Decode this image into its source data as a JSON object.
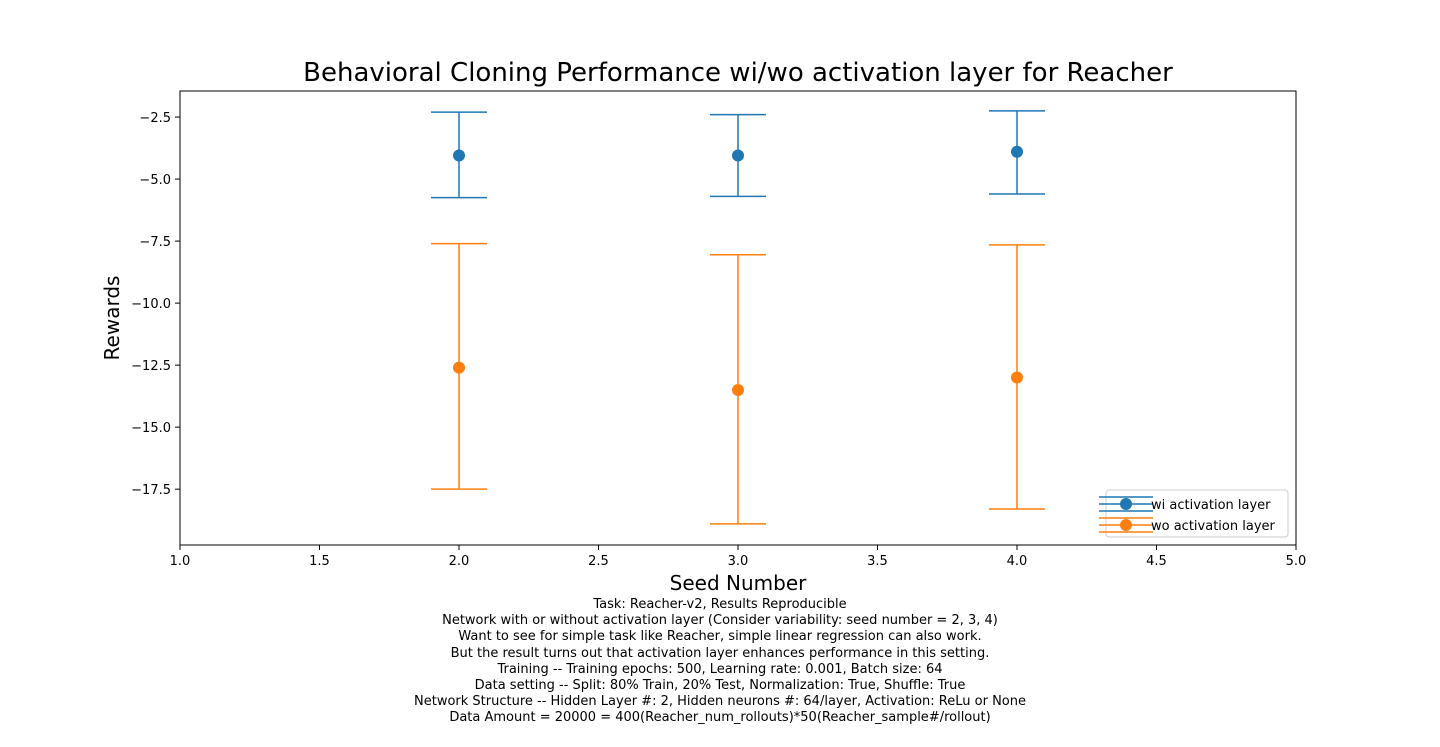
{
  "chart_data": {
    "type": "scatter",
    "title": "Behavioral Cloning Performance wi/wo activation layer for Reacher",
    "xlabel": "Seed Number",
    "ylabel": "Rewards",
    "xlim": [
      1.0,
      5.0
    ],
    "ylim": [
      -19.75,
      -1.45
    ],
    "x_ticks": [
      1.0,
      1.5,
      2.0,
      2.5,
      3.0,
      3.5,
      4.0,
      4.5,
      5.0
    ],
    "x_tick_labels": [
      "1.0",
      "1.5",
      "2.0",
      "2.5",
      "3.0",
      "3.5",
      "4.0",
      "4.5",
      "5.0"
    ],
    "y_ticks": [
      -2.5,
      -5.0,
      -7.5,
      -10.0,
      -12.5,
      -15.0,
      -17.5
    ],
    "y_tick_labels": [
      "−2.5",
      "−5.0",
      "−7.5",
      "−10.0",
      "−12.5",
      "−15.0",
      "−17.5"
    ],
    "grid": false,
    "legend_position": "bottom-right",
    "error_bars": true,
    "series": [
      {
        "name": "wi activation layer",
        "color": "#1f77b4",
        "x": [
          2,
          3,
          4
        ],
        "y": [
          -4.05,
          -4.05,
          -3.9
        ],
        "err_low": [
          -5.75,
          -5.7,
          -5.6
        ],
        "err_high": [
          -2.3,
          -2.4,
          -2.25
        ]
      },
      {
        "name": "wo activation layer",
        "color": "#ff7f0e",
        "x": [
          2,
          3,
          4
        ],
        "y": [
          -12.6,
          -13.5,
          -13.0
        ],
        "err_low": [
          -17.5,
          -18.9,
          -18.3
        ],
        "err_high": [
          -7.6,
          -8.05,
          -7.65
        ]
      }
    ]
  },
  "caption": {
    "lines": [
      "Task: Reacher-v2, Results Reproducible",
      "Network with or without activation layer (Consider variability: seed number = 2, 3, 4)",
      "Want to see for simple task like Reacher, simple linear regression can also work.",
      "But the result turns out that activation layer enhances performance in this setting.",
      "Training -- Training epochs: 500, Learning rate: 0.001, Batch size: 64",
      "Data setting -- Split: 80% Train, 20% Test, Normalization: True, Shuffle: True",
      "Network Structure -- Hidden Layer #: 2, Hidden neurons #: 64/layer, Activation: ReLu or None",
      "Data Amount = 20000 = 400(Reacher_num_rollouts)*50(Reacher_sample#/rollout)"
    ]
  }
}
